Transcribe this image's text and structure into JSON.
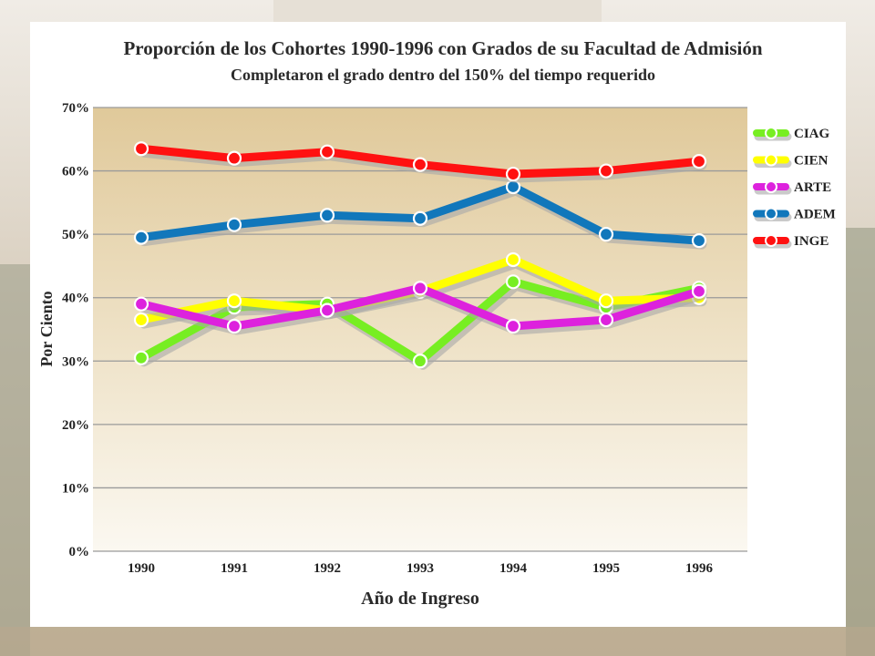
{
  "chart_data": {
    "type": "line",
    "title": "Proporción de los Cohortes 1990-1996 con Grados de su Facultad de Admisión",
    "subtitle": "Completaron el grado dentro del 150% del tiempo requerido",
    "xlabel": "Año de Ingreso",
    "ylabel": "Por Ciento",
    "categories": [
      "1990",
      "1991",
      "1992",
      "1993",
      "1994",
      "1995",
      "1996"
    ],
    "yticks": [
      "0%",
      "10%",
      "20%",
      "30%",
      "40%",
      "50%",
      "60%",
      "70%"
    ],
    "ylim": [
      0,
      70
    ],
    "grid": true,
    "legend_position": "right",
    "series": [
      {
        "name": "CIAG",
        "color": "#77ee22",
        "values": [
          30.5,
          38.5,
          39,
          30,
          42.5,
          38.5,
          41.5
        ]
      },
      {
        "name": "CIEN",
        "color": "#ffff00",
        "values": [
          36.5,
          39.5,
          38,
          41,
          46,
          39.5,
          40
        ]
      },
      {
        "name": "ARTE",
        "color": "#dd22dd",
        "values": [
          39,
          35.5,
          38,
          41.5,
          35.5,
          36.5,
          41
        ]
      },
      {
        "name": "ADEM",
        "color": "#1177bb",
        "values": [
          49.5,
          51.5,
          53,
          52.5,
          57.5,
          50,
          49
        ]
      },
      {
        "name": "INGE",
        "color": "#ff1111",
        "values": [
          63.5,
          62,
          63,
          61,
          59.5,
          60,
          61.5
        ]
      }
    ]
  }
}
